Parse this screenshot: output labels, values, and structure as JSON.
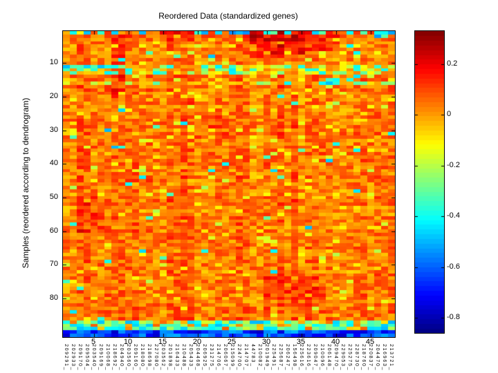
{
  "chart_data": {
    "type": "heatmap",
    "title": "Reordered Data (standardized genes)",
    "ylabel": "Samples (reordered according to dendrogram)",
    "n_rows": 91,
    "n_cols": 48,
    "colormap": "jet",
    "value_range": [
      -0.86,
      0.33
    ],
    "x_ticks": [
      5,
      10,
      15,
      20,
      25,
      30,
      35,
      40,
      45
    ],
    "y_ticks": [
      10,
      20,
      30,
      40,
      50,
      60,
      70,
      80
    ],
    "colorbar_ticks": [
      0.2,
      0,
      -0.2,
      -0.4,
      -0.6,
      -0.8
    ],
    "legend_position": "right-colorbar",
    "grid": false,
    "column_labels": [
      "209291_",
      "202933_",
      "209170_",
      "209504_",
      "203540_",
      "209169_",
      "210068_",
      "218692_",
      "204940_",
      "203560_",
      "209160_",
      "218080_",
      "218698_",
      "227080_",
      "203562_",
      "201898_",
      "216433_",
      "210488_",
      "205433_",
      "204468_",
      "206925_",
      "231275_",
      "214706_",
      "206067_",
      "215099_",
      "224700_",
      "214707_",
      "44783_",
      "210082_",
      "201949_",
      "225491_",
      "225687_",
      "206247_",
      "156498_",
      "225616_",
      "223616_",
      "209047_",
      "210096_",
      "206148_",
      "209470_",
      "229053_",
      "225275_",
      "228730_",
      "218760_",
      "220837_",
      "204470_",
      "216963_",
      "213721_"
    ],
    "generation": {
      "seed": 1337,
      "baseline_mean": 0.055,
      "noise": 0.085,
      "col_effect": 0.04,
      "row_effect": 0.02,
      "yellow_fraction": 0.1,
      "yellow_shift": -0.13,
      "speck_fraction": 0.012,
      "clamp": [
        -0.85,
        0.32
      ],
      "hot_patches": [
        {
          "rows": [
            1,
            8
          ],
          "cols": [
            28,
            35
          ],
          "boost": 0.13
        },
        {
          "rows": [
            1,
            6
          ],
          "cols": [
            36,
            40
          ],
          "boost": 0.09
        },
        {
          "rows": [
            2,
            20
          ],
          "cols": [
            8,
            9
          ],
          "boost": 0.07
        },
        {
          "rows": [
            1,
            4
          ],
          "cols": [
            15,
            19
          ],
          "boost": 0.08
        },
        {
          "rows": [
            50,
            60
          ],
          "cols": [
            3,
            6
          ],
          "boost": 0.05
        },
        {
          "rows": [
            74,
            82
          ],
          "cols": [
            30,
            38
          ],
          "boost": 0.06
        },
        {
          "rows": [
            25,
            35
          ],
          "cols": [
            20,
            24
          ],
          "boost": 0.04
        }
      ],
      "cool_patches": [
        {
          "rows": [
            1,
            3
          ],
          "cols": [
            46,
            48
          ],
          "fraction": 0.5,
          "mean": -0.42,
          "spread": 0.12
        },
        {
          "rows": [
            1,
            1
          ],
          "cols": [
            20,
            27
          ],
          "fraction": 0.55,
          "mean": -0.45,
          "spread": 0.1
        },
        {
          "rows": [
            15,
            16
          ],
          "cols": [
            39,
            44
          ],
          "fraction": 0.5,
          "mean": -0.34,
          "spread": 0.12
        },
        {
          "rows": [
            11,
            12
          ],
          "cols": [
            1,
            10
          ],
          "fraction": 0.4,
          "mean": -0.3,
          "spread": 0.14
        }
      ],
      "bands": [
        {
          "rows": [
            1,
            1
          ],
          "cool_fraction": 0.28,
          "cool_mean": -0.42,
          "cool_spread": 0.12,
          "warm_shift": 0
        },
        {
          "rows": [
            11,
            13
          ],
          "cool_fraction": 0.3,
          "cool_mean": -0.28,
          "cool_spread": 0.16,
          "warm_shift": -0.07
        },
        {
          "rows": [
            16,
            16
          ],
          "cool_fraction": 0.15,
          "cool_mean": -0.3,
          "cool_spread": 0.12,
          "warm_shift": -0.04
        },
        {
          "rows": [
            87,
            89
          ],
          "cool_fraction": 0.7,
          "cool_mean": -0.33,
          "cool_spread": 0.17,
          "warm_shift": -0.05
        },
        {
          "rows": [
            90,
            91
          ],
          "cool_fraction": 1.0,
          "cool_mean": -0.64,
          "cool_spread": 0.15,
          "warm_shift": 0
        }
      ]
    }
  }
}
